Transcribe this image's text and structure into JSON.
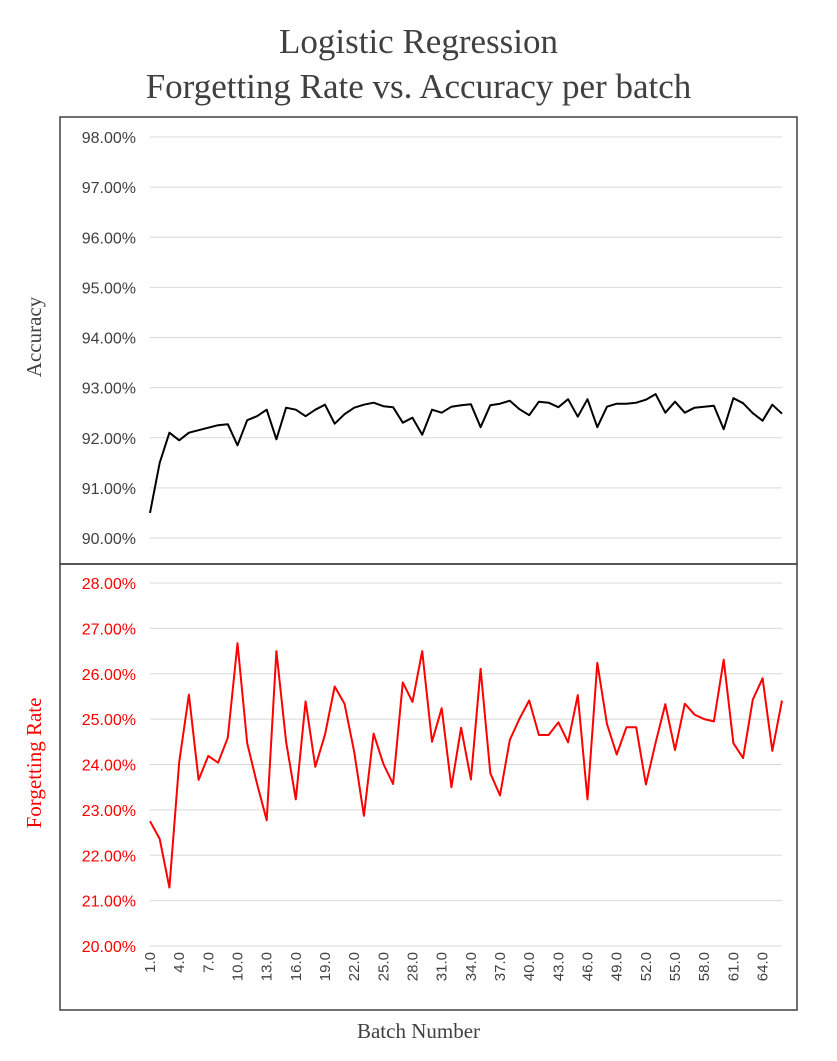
{
  "chart_data": {
    "type": "line",
    "title_lines": [
      "Logistic Regression",
      "Forgetting Rate vs. Accuracy per batch"
    ],
    "xlabel": "Batch Number",
    "x": [
      1,
      2,
      3,
      4,
      5,
      6,
      7,
      8,
      9,
      10,
      11,
      12,
      13,
      14,
      15,
      16,
      17,
      18,
      19,
      20,
      21,
      22,
      23,
      24,
      25,
      26,
      27,
      28,
      29,
      30,
      31,
      32,
      33,
      34,
      35,
      36,
      37,
      38,
      39,
      40,
      41,
      42,
      43,
      44,
      45,
      46,
      47,
      48,
      49,
      50,
      51,
      52,
      53,
      54,
      55,
      56,
      57,
      58,
      59,
      60,
      61,
      62,
      63,
      64,
      65,
      66
    ],
    "x_tick_labels": [
      "1.0",
      "4.0",
      "7.0",
      "10.0",
      "13.0",
      "16.0",
      "19.0",
      "22.0",
      "25.0",
      "28.0",
      "31.0",
      "34.0",
      "37.0",
      "40.0",
      "43.0",
      "46.0",
      "49.0",
      "52.0",
      "55.0",
      "58.0",
      "61.0",
      "64.0"
    ],
    "x_tick_values": [
      1,
      4,
      7,
      10,
      13,
      16,
      19,
      22,
      25,
      28,
      31,
      34,
      37,
      40,
      43,
      46,
      49,
      52,
      55,
      58,
      61,
      64
    ],
    "panels": [
      {
        "ylabel": "Accuracy",
        "color": "#000000",
        "tick_color": "#404040",
        "ylim": [
          90,
          98
        ],
        "y_tick_values": [
          90,
          91,
          92,
          93,
          94,
          95,
          96,
          97,
          98
        ],
        "y_tick_labels": [
          "90.00%",
          "91.00%",
          "92.00%",
          "93.00%",
          "94.00%",
          "95.00%",
          "96.00%",
          "97.00%",
          "98.00%"
        ],
        "series": [
          {
            "values": [
              90.5,
              91.5,
              92.1,
              91.95,
              92.1,
              92.15,
              92.2,
              92.25,
              92.27,
              91.85,
              92.35,
              92.43,
              92.56,
              91.97,
              92.6,
              92.56,
              92.43,
              92.56,
              92.66,
              92.28,
              92.47,
              92.6,
              92.66,
              92.7,
              92.63,
              92.61,
              92.3,
              92.4,
              92.06,
              92.56,
              92.5,
              92.62,
              92.65,
              92.67,
              92.21,
              92.65,
              92.68,
              92.74,
              92.57,
              92.45,
              92.72,
              92.7,
              92.61,
              92.77,
              92.42,
              92.77,
              92.21,
              92.62,
              92.68,
              92.68,
              92.7,
              92.76,
              92.87,
              92.5,
              92.72,
              92.5,
              92.6,
              92.62,
              92.64,
              92.17,
              92.79,
              92.69,
              92.49,
              92.34,
              92.66,
              92.48
            ]
          }
        ]
      },
      {
        "ylabel": "Forgetting Rate",
        "color": "#ff0000",
        "tick_color": "#ff0000",
        "ylim": [
          20,
          28
        ],
        "y_tick_values": [
          20,
          21,
          22,
          23,
          24,
          25,
          26,
          27,
          28
        ],
        "y_tick_labels": [
          "20.00%",
          "21.00%",
          "22.00%",
          "23.00%",
          "24.00%",
          "25.00%",
          "26.00%",
          "27.00%",
          "28.00%"
        ],
        "series": [
          {
            "values": [
              22.75,
              22.36,
              21.29,
              24.05,
              25.54,
              23.66,
              24.19,
              24.04,
              24.59,
              26.67,
              24.47,
              23.58,
              22.77,
              26.5,
              24.5,
              23.23,
              25.39,
              23.95,
              24.66,
              25.72,
              25.34,
              24.28,
              22.87,
              24.68,
              24.01,
              23.57,
              25.81,
              25.38,
              26.5,
              24.5,
              25.24,
              23.5,
              24.81,
              23.67,
              26.11,
              23.81,
              23.32,
              24.54,
              25.01,
              25.41,
              24.65,
              24.65,
              24.93,
              24.49,
              25.53,
              23.23,
              26.24,
              24.89,
              24.22,
              24.82,
              24.82,
              23.56,
              24.48,
              25.33,
              24.32,
              25.34,
              25.1,
              25.0,
              24.95,
              26.31,
              24.47,
              24.14,
              25.43,
              25.9,
              24.3,
              25.41
            ]
          }
        ]
      }
    ]
  }
}
